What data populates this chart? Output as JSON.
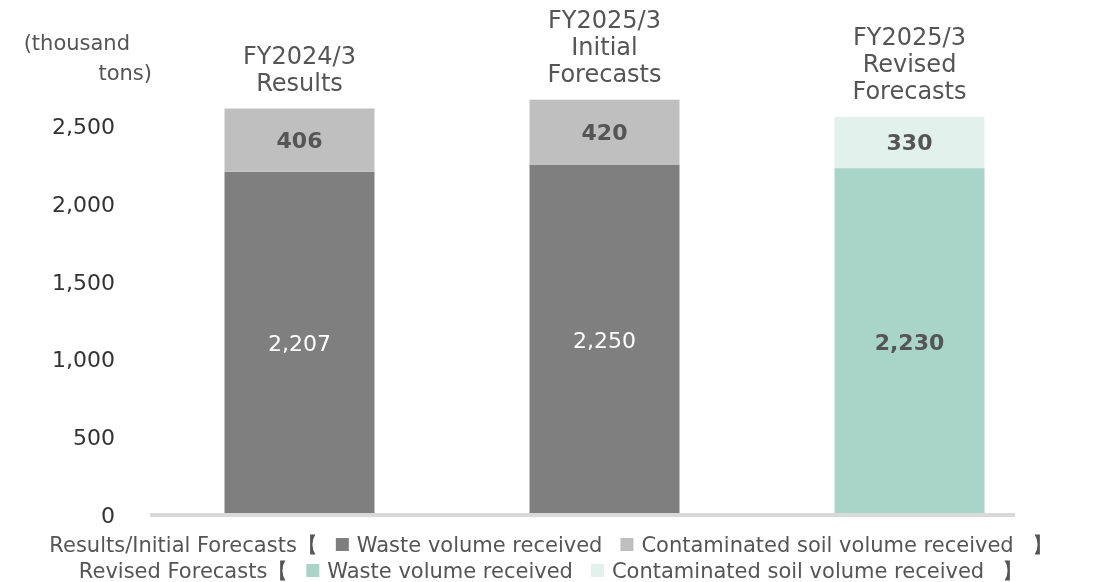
{
  "chart_data": {
    "type": "bar",
    "stacked": true,
    "ylabel": "(thousand tons)",
    "categories": [
      "FY2024/3 Results",
      "FY2025/3 Initial Forecasts",
      "FY2025/3 Revised Forecasts"
    ],
    "series": [
      {
        "name": "Waste volume received",
        "color": "#7f7f7f",
        "values": [
          2207,
          2250,
          null
        ],
        "value_labels": [
          "2,207",
          "2,250",
          null
        ]
      },
      {
        "name": "Contaminated soil volume received",
        "color": "#bfbfbf",
        "values": [
          406,
          420,
          null
        ],
        "value_labels": [
          "406",
          "420",
          null
        ]
      },
      {
        "name": "Waste volume received",
        "color": "#a9d5c8",
        "values": [
          null,
          null,
          2230
        ],
        "value_labels": [
          null,
          null,
          "2,230"
        ]
      },
      {
        "name": "Contaminated soil volume received",
        "color": "#e2f1ec",
        "values": [
          null,
          null,
          330
        ],
        "value_labels": [
          null,
          null,
          "330"
        ]
      }
    ],
    "ylim": [
      0,
      2700
    ],
    "yticks": [
      {
        "value": 0,
        "label": "0"
      },
      {
        "value": 500,
        "label": "500"
      },
      {
        "value": 1000,
        "label": "1,000"
      },
      {
        "value": 1500,
        "label": "1,500"
      },
      {
        "value": 2000,
        "label": "2,000"
      },
      {
        "value": 2500,
        "label": "2,500"
      }
    ],
    "legend": "bottom",
    "annotations": [
      "Results/Initial Forecasts【",
      "】",
      "Revised Forecasts【",
      "】"
    ]
  }
}
